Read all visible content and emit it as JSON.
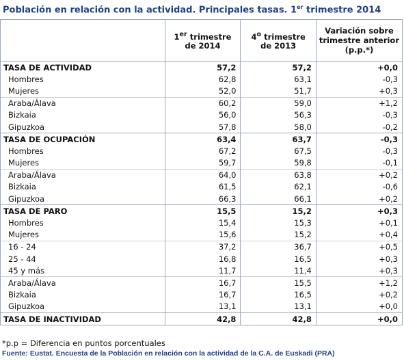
{
  "title": {
    "prefix": "Población en relación con la actividad. Principales tasas. 1",
    "sup": "er",
    "suffix": " trimestre 2014"
  },
  "headers": {
    "col1": {
      "a": "1",
      "sup": "er",
      "b": " trimestre",
      "c": "de 2014"
    },
    "col2": {
      "a": "4",
      "sup": "o",
      "b": " trimestre",
      "c": "de 2013"
    },
    "col3": {
      "line1": "Variación sobre",
      "line2": "trimestre anterior",
      "line3": "(p.p.*)"
    }
  },
  "rows": [
    {
      "label": "TASA DE ACTIVIDAD",
      "v1": "57,2",
      "v2": "57,2",
      "v3": "+0,0"
    },
    {
      "label": "Hombres",
      "v1": "62,8",
      "v2": "63,1",
      "v3": "-0,3"
    },
    {
      "label": "Mujeres",
      "v1": "52,0",
      "v2": "51,7",
      "v3": "+0,3"
    },
    {
      "label": "Araba/Álava",
      "v1": "60,2",
      "v2": "59,0",
      "v3": "+1,2"
    },
    {
      "label": "Bizkaia",
      "v1": "56,0",
      "v2": "56,3",
      "v3": "-0,3"
    },
    {
      "label": "Gipuzkoa",
      "v1": "57,8",
      "v2": "58,0",
      "v3": "-0,2"
    },
    {
      "label": "TASA DE OCUPACIÓN",
      "v1": "63,4",
      "v2": "63,7",
      "v3": "-0,3"
    },
    {
      "label": "Hombres",
      "v1": "67,2",
      "v2": "67,5",
      "v3": "-0,3"
    },
    {
      "label": "Mujeres",
      "v1": "59,7",
      "v2": "59,8",
      "v3": "-0,1"
    },
    {
      "label": "Araba/Álava",
      "v1": "64,0",
      "v2": "63,8",
      "v3": "+0,2"
    },
    {
      "label": "Bizkaia",
      "v1": "61,5",
      "v2": "62,1",
      "v3": "-0,6"
    },
    {
      "label": "Gipuzkoa",
      "v1": "66,3",
      "v2": "66,1",
      "v3": "+0,2"
    },
    {
      "label": "TASA DE PARO",
      "v1": "15,5",
      "v2": "15,2",
      "v3": "+0,3"
    },
    {
      "label": "Hombres",
      "v1": "15,4",
      "v2": "15,3",
      "v3": "+0,1"
    },
    {
      "label": "Mujeres",
      "v1": "15,6",
      "v2": "15,2",
      "v3": "+0,4"
    },
    {
      "label": "16 - 24",
      "v1": "37,2",
      "v2": "36,7",
      "v3": "+0,5"
    },
    {
      "label": "25 - 44",
      "v1": "16,8",
      "v2": "16,5",
      "v3": "+0,3"
    },
    {
      "label": "45  y más",
      "v1": "11,7",
      "v2": "11,4",
      "v3": "+0,3"
    },
    {
      "label": "Araba/Álava",
      "v1": "16,7",
      "v2": "15,5",
      "v3": "+1,2"
    },
    {
      "label": "Bizkaia",
      "v1": "16,7",
      "v2": "16,5",
      "v3": "+0,2"
    },
    {
      "label": "Gipuzkoa",
      "v1": "13,1",
      "v2": "13,1",
      "v3": "+0,0"
    },
    {
      "label": "TASA DE INACTIVIDAD",
      "v1": "42,8",
      "v2": "42,8",
      "v3": "+0,0"
    }
  ],
  "note": "*p.p = Diferencia en puntos porcentuales",
  "source": "Fuente: Eustat. Encuesta de la Población en relación con la actividad de la C.A. de Euskadi (PRA)"
}
